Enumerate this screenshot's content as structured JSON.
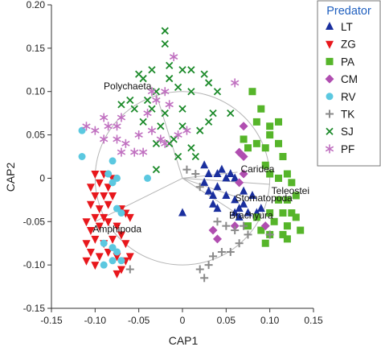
{
  "chart_data": {
    "type": "scatter",
    "xlabel": "CAP1",
    "ylabel": "CAP2",
    "xlim": [
      -0.15,
      0.15
    ],
    "ylim": [
      -0.15,
      0.2
    ],
    "x_ticks": [
      -0.15,
      -0.1,
      -0.05,
      0,
      0.05,
      0.1,
      0.15
    ],
    "y_ticks": [
      -0.15,
      -0.1,
      -0.05,
      0,
      0.05,
      0.1,
      0.15,
      0.2
    ],
    "x_tick_labels": [
      "-0.15",
      "-0.10",
      "-0.05",
      "0",
      "0.05",
      "0.10",
      "0.15"
    ],
    "y_tick_labels": [
      "-0.15",
      "-0.10",
      "-0.05",
      "0",
      "0.05",
      "0.10",
      "0.15",
      "0.20"
    ],
    "grid": false,
    "legend": {
      "title": "Predator",
      "placement": "top-right",
      "title_color": "#1f5fbf"
    },
    "circle": {
      "center": [
        0,
        0
      ],
      "radius": 0.1
    },
    "vectors": [
      {
        "label": "Polychaeta",
        "x": -0.03,
        "y": 0.097
      },
      {
        "label": "Amphipoda",
        "x": -0.1,
        "y": -0.05
      },
      {
        "label": "Caridea",
        "x": 0.063,
        "y": 0.007
      },
      {
        "label": "Teleostei",
        "x": 0.1,
        "y": -0.007
      },
      {
        "label": "Stomatopoda",
        "x": 0.063,
        "y": -0.022
      },
      {
        "label": "Brachyura",
        "x": 0.058,
        "y": -0.038
      }
    ],
    "series": [
      {
        "name": "LT",
        "marker": "triangle-up",
        "color": "#1a2f9e",
        "points": [
          [
            0.025,
            0.015
          ],
          [
            0.03,
            0.005
          ],
          [
            0.04,
            0.005
          ],
          [
            0.045,
            0.01
          ],
          [
            0.05,
            0.0
          ],
          [
            0.055,
            0.005
          ],
          [
            0.06,
            0.0
          ],
          [
            0.025,
            -0.005
          ],
          [
            0.03,
            -0.015
          ],
          [
            0.035,
            -0.02
          ],
          [
            0.04,
            -0.01
          ],
          [
            0.05,
            -0.02
          ],
          [
            0.06,
            -0.025
          ],
          [
            0.065,
            -0.035
          ],
          [
            0.07,
            -0.03
          ],
          [
            0.075,
            -0.04
          ],
          [
            0.085,
            -0.04
          ],
          [
            0.08,
            -0.02
          ],
          [
            0.07,
            -0.015
          ],
          [
            0.06,
            -0.04
          ],
          [
            0.04,
            -0.035
          ],
          [
            0.035,
            -0.03
          ],
          [
            0.0,
            -0.04
          ],
          [
            0.09,
            -0.035
          ],
          [
            0.065,
            -0.045
          ]
        ]
      },
      {
        "name": "ZG",
        "marker": "triangle-down",
        "color": "#e8171c",
        "points": [
          [
            -0.1,
            0.005
          ],
          [
            -0.09,
            0.005
          ],
          [
            -0.08,
            0.0
          ],
          [
            -0.095,
            -0.005
          ],
          [
            -0.105,
            -0.01
          ],
          [
            -0.085,
            -0.01
          ],
          [
            -0.1,
            -0.02
          ],
          [
            -0.09,
            -0.02
          ],
          [
            -0.08,
            -0.02
          ],
          [
            -0.105,
            -0.03
          ],
          [
            -0.095,
            -0.035
          ],
          [
            -0.085,
            -0.03
          ],
          [
            -0.1,
            -0.045
          ],
          [
            -0.09,
            -0.045
          ],
          [
            -0.11,
            -0.05
          ],
          [
            -0.105,
            -0.06
          ],
          [
            -0.095,
            -0.055
          ],
          [
            -0.085,
            -0.05
          ],
          [
            -0.075,
            -0.055
          ],
          [
            -0.07,
            -0.035
          ],
          [
            -0.065,
            -0.04
          ],
          [
            -0.06,
            -0.045
          ],
          [
            -0.11,
            -0.075
          ],
          [
            -0.1,
            -0.07
          ],
          [
            -0.09,
            -0.075
          ],
          [
            -0.08,
            -0.07
          ],
          [
            -0.07,
            -0.065
          ],
          [
            -0.065,
            -0.075
          ],
          [
            -0.105,
            -0.085
          ],
          [
            -0.095,
            -0.09
          ],
          [
            -0.085,
            -0.085
          ],
          [
            -0.075,
            -0.09
          ],
          [
            -0.11,
            -0.095
          ],
          [
            -0.065,
            -0.095
          ],
          [
            -0.07,
            -0.105
          ],
          [
            -0.075,
            -0.11
          ],
          [
            -0.1,
            -0.1
          ],
          [
            -0.06,
            -0.09
          ]
        ]
      },
      {
        "name": "PA",
        "marker": "square",
        "color": "#56b52a",
        "points": [
          [
            0.08,
            0.1
          ],
          [
            0.09,
            0.08
          ],
          [
            0.085,
            0.065
          ],
          [
            0.1,
            0.06
          ],
          [
            0.11,
            0.065
          ],
          [
            0.1,
            0.05
          ],
          [
            0.11,
            0.04
          ],
          [
            0.085,
            0.04
          ],
          [
            0.07,
            0.045
          ],
          [
            0.075,
            0.035
          ],
          [
            0.095,
            0.035
          ],
          [
            0.115,
            0.025
          ],
          [
            0.095,
            0.015
          ],
          [
            0.1,
            0.005
          ],
          [
            0.12,
            0.005
          ],
          [
            0.11,
            0.0
          ],
          [
            0.125,
            -0.005
          ],
          [
            0.13,
            -0.02
          ],
          [
            0.12,
            -0.025
          ],
          [
            0.125,
            -0.04
          ],
          [
            0.11,
            -0.025
          ],
          [
            0.115,
            -0.04
          ],
          [
            0.1,
            -0.04
          ],
          [
            0.105,
            -0.05
          ],
          [
            0.12,
            -0.055
          ],
          [
            0.13,
            -0.045
          ],
          [
            0.1,
            -0.065
          ],
          [
            0.115,
            -0.065
          ],
          [
            0.085,
            -0.045
          ],
          [
            0.09,
            -0.06
          ],
          [
            0.095,
            -0.075
          ],
          [
            0.075,
            -0.055
          ],
          [
            0.12,
            -0.07
          ],
          [
            0.135,
            -0.06
          ]
        ]
      },
      {
        "name": "CM",
        "marker": "diamond",
        "color": "#b04eb0",
        "points": [
          [
            0.07,
            0.06
          ],
          [
            0.065,
            0.03
          ],
          [
            0.07,
            0.025
          ],
          [
            0.07,
            0.005
          ],
          [
            0.065,
            -0.005
          ],
          [
            0.035,
            -0.06
          ],
          [
            0.04,
            -0.07
          ],
          [
            0.06,
            -0.055
          ],
          [
            0.095,
            -0.055
          ]
        ]
      },
      {
        "name": "RV",
        "marker": "circle",
        "color": "#5bc8e0",
        "points": [
          [
            -0.115,
            0.055
          ],
          [
            -0.115,
            0.025
          ],
          [
            -0.08,
            0.02
          ],
          [
            -0.085,
            0.005
          ],
          [
            -0.075,
            0.0
          ],
          [
            -0.08,
            -0.005
          ],
          [
            -0.04,
            0.0
          ],
          [
            -0.075,
            -0.035
          ],
          [
            -0.07,
            -0.04
          ],
          [
            -0.09,
            -0.075
          ],
          [
            -0.08,
            -0.08
          ],
          [
            -0.075,
            -0.085
          ],
          [
            -0.08,
            -0.095
          ],
          [
            -0.07,
            -0.095
          ],
          [
            -0.09,
            -0.1
          ]
        ]
      },
      {
        "name": "TK",
        "marker": "plus",
        "color": "#8a8a8a",
        "points": [
          [
            0.005,
            0.01
          ],
          [
            0.015,
            0.005
          ],
          [
            0.02,
            -0.01
          ],
          [
            0.04,
            -0.05
          ],
          [
            0.05,
            -0.055
          ],
          [
            0.06,
            -0.06
          ],
          [
            0.07,
            -0.055
          ],
          [
            0.075,
            -0.065
          ],
          [
            0.065,
            -0.075
          ],
          [
            0.055,
            -0.085
          ],
          [
            0.045,
            -0.085
          ],
          [
            0.035,
            -0.09
          ],
          [
            0.03,
            -0.1
          ],
          [
            0.02,
            -0.105
          ],
          [
            0.025,
            -0.115
          ],
          [
            0.1,
            -0.065
          ],
          [
            -0.06,
            -0.105
          ]
        ]
      },
      {
        "name": "SJ",
        "marker": "x",
        "color": "#1c8a2a",
        "points": [
          [
            -0.02,
            0.17
          ],
          [
            -0.02,
            0.155
          ],
          [
            -0.015,
            0.13
          ],
          [
            -0.05,
            0.12
          ],
          [
            -0.035,
            0.125
          ],
          [
            -0.045,
            0.115
          ],
          [
            0.0,
            0.125
          ],
          [
            -0.015,
            0.115
          ],
          [
            0.01,
            0.125
          ],
          [
            0.025,
            0.12
          ],
          [
            -0.03,
            0.1
          ],
          [
            -0.005,
            0.105
          ],
          [
            0.03,
            0.11
          ],
          [
            0.04,
            0.1
          ],
          [
            0.01,
            0.1
          ],
          [
            -0.06,
            0.09
          ],
          [
            -0.04,
            0.09
          ],
          [
            -0.07,
            0.085
          ],
          [
            -0.055,
            0.08
          ],
          [
            -0.035,
            0.08
          ],
          [
            -0.02,
            0.075
          ],
          [
            0.0,
            0.08
          ],
          [
            0.035,
            0.075
          ],
          [
            0.055,
            0.075
          ],
          [
            0.03,
            0.065
          ],
          [
            -0.045,
            0.065
          ],
          [
            -0.025,
            0.06
          ],
          [
            0.0,
            0.06
          ],
          [
            0.02,
            0.055
          ],
          [
            -0.01,
            0.045
          ],
          [
            -0.03,
            0.04
          ],
          [
            -0.015,
            0.04
          ],
          [
            0.01,
            0.035
          ],
          [
            -0.005,
            0.025
          ],
          [
            0.015,
            0.025
          ],
          [
            -0.03,
            0.01
          ]
        ]
      },
      {
        "name": "PF",
        "marker": "asterisk",
        "color": "#c070c0",
        "points": [
          [
            -0.01,
            0.14
          ],
          [
            0.06,
            0.11
          ],
          [
            -0.035,
            0.1
          ],
          [
            -0.03,
            0.09
          ],
          [
            -0.015,
            0.085
          ],
          [
            -0.04,
            0.075
          ],
          [
            -0.02,
            0.1
          ],
          [
            -0.09,
            0.07
          ],
          [
            -0.075,
            0.06
          ],
          [
            -0.09,
            0.045
          ],
          [
            -0.075,
            0.045
          ],
          [
            -0.065,
            0.04
          ],
          [
            -0.05,
            0.05
          ],
          [
            -0.035,
            0.055
          ],
          [
            -0.02,
            0.04
          ],
          [
            -0.1,
            0.055
          ],
          [
            -0.11,
            0.06
          ],
          [
            -0.085,
            0.06
          ],
          [
            -0.07,
            0.07
          ],
          [
            -0.055,
            0.03
          ],
          [
            -0.07,
            0.03
          ],
          [
            -0.045,
            0.03
          ],
          [
            -0.025,
            0.045
          ],
          [
            -0.005,
            0.05
          ],
          [
            0.005,
            0.055
          ]
        ]
      }
    ]
  }
}
